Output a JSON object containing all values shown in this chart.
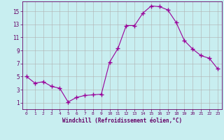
{
  "x": [
    0,
    1,
    2,
    3,
    4,
    5,
    6,
    7,
    8,
    9,
    10,
    11,
    12,
    13,
    14,
    15,
    16,
    17,
    18,
    19,
    20,
    21,
    22,
    23
  ],
  "y": [
    5.0,
    4.0,
    4.2,
    3.5,
    3.2,
    1.1,
    1.8,
    2.1,
    2.2,
    2.3,
    7.2,
    9.3,
    12.8,
    12.8,
    14.7,
    15.8,
    15.7,
    15.2,
    13.3,
    10.5,
    9.2,
    8.2,
    7.8,
    6.2
  ],
  "line_color": "#990099",
  "marker": "D",
  "marker_size": 2.0,
  "bg_color": "#c8eef0",
  "grid_color": "#b0b0b0",
  "xlabel": "Windchill (Refroidissement éolien,°C)",
  "xlabel_color": "#660066",
  "tick_color": "#660066",
  "axis_color": "#660066",
  "xlim": [
    -0.5,
    23.5
  ],
  "ylim": [
    0,
    16.5
  ],
  "yticks": [
    1,
    3,
    5,
    7,
    9,
    11,
    13,
    15
  ],
  "xticks": [
    0,
    1,
    2,
    3,
    4,
    5,
    6,
    7,
    8,
    9,
    10,
    11,
    12,
    13,
    14,
    15,
    16,
    17,
    18,
    19,
    20,
    21,
    22,
    23
  ]
}
